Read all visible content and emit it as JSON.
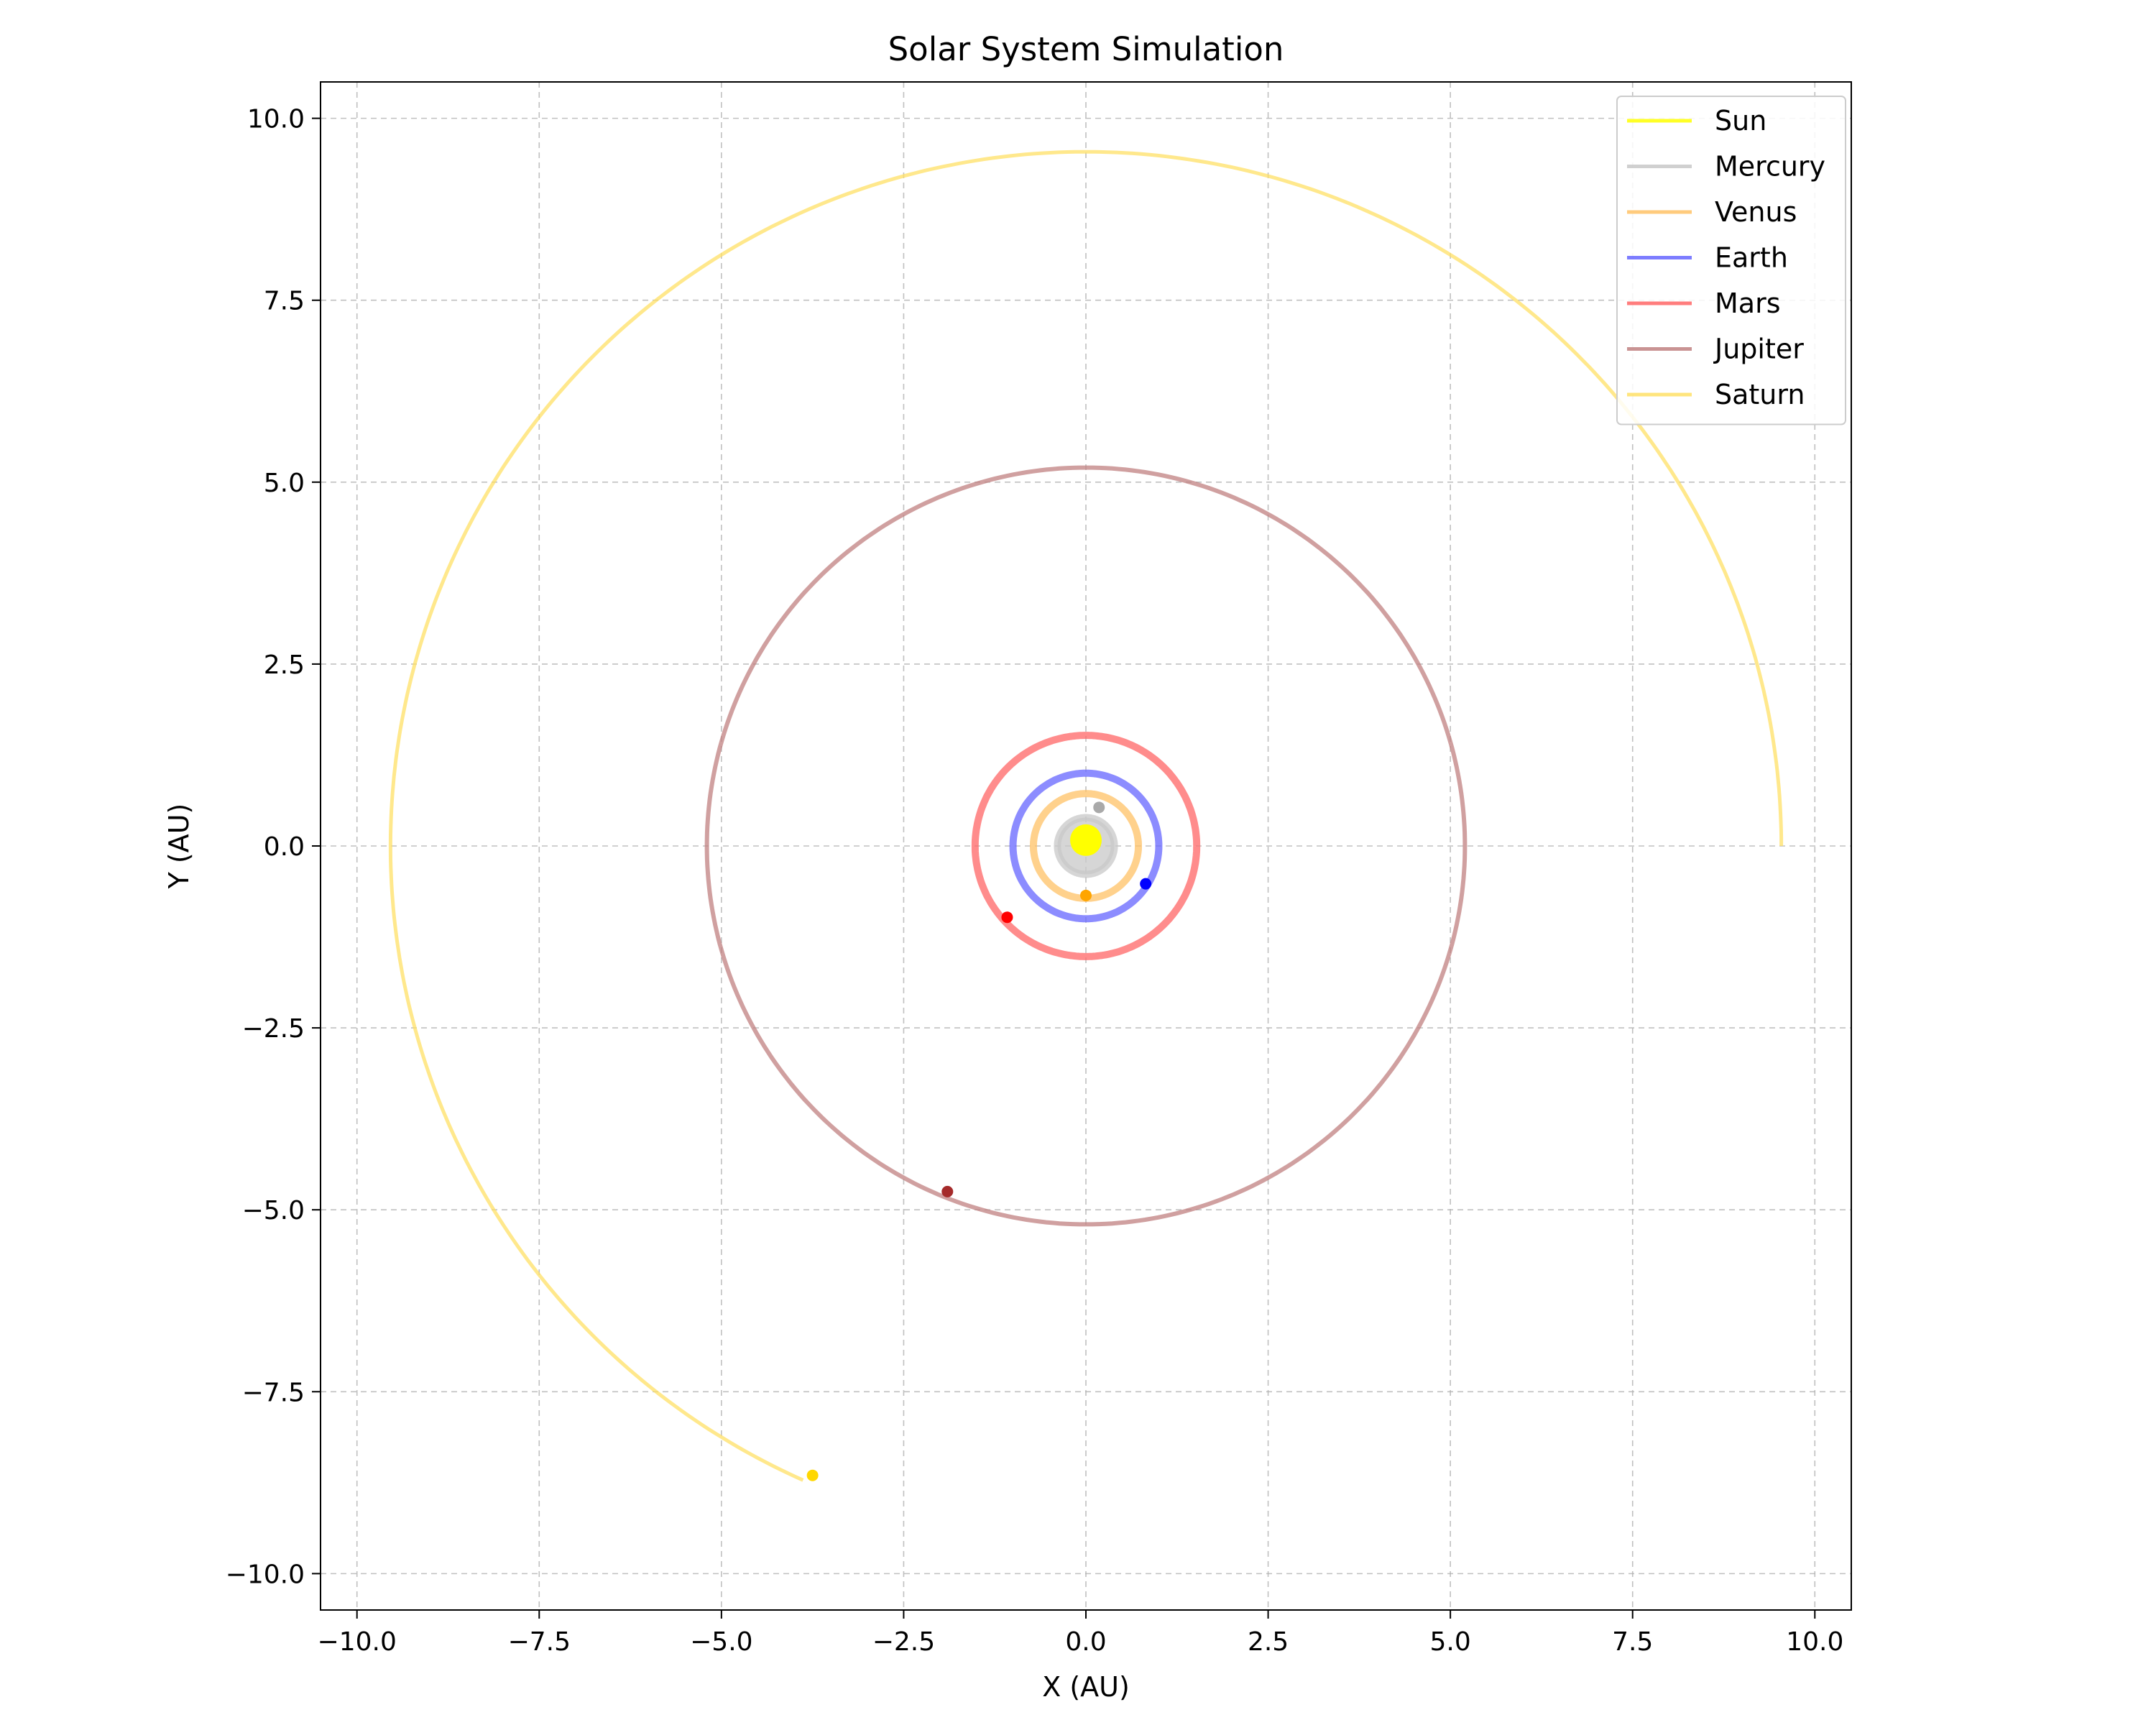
{
  "chart_data": {
    "type": "line",
    "title": "Solar System Simulation",
    "xlabel": "X (AU)",
    "ylabel": "Y (AU)",
    "xlim": [
      -10.5,
      10.5
    ],
    "ylim": [
      -10.5,
      10.5
    ],
    "xticks": [
      -10.0,
      -7.5,
      -5.0,
      -2.5,
      0.0,
      2.5,
      5.0,
      7.5,
      10.0
    ],
    "yticks": [
      -10.0,
      -7.5,
      -5.0,
      -2.5,
      0.0,
      2.5,
      5.0,
      7.5,
      10.0
    ],
    "xtick_labels": [
      "−10.0",
      "−7.5",
      "−5.0",
      "−2.5",
      "0.0",
      "2.5",
      "5.0",
      "7.5",
      "10.0"
    ],
    "ytick_labels": [
      "−10.0",
      "−7.5",
      "−5.0",
      "−2.5",
      "0.0",
      "2.5",
      "5.0",
      "7.5",
      "10.0"
    ],
    "grid": true,
    "legend_position": "top-right",
    "series": [
      {
        "name": "Sun",
        "color": "#ffff00",
        "orbit_radius": 0.0,
        "start_angle_deg": 0,
        "sweep_deg": 0,
        "current": [
          0.0,
          0.08
        ],
        "marker_color": "#ffff00"
      },
      {
        "name": "Mercury",
        "color": "#c8c8c8",
        "orbit_radius": 0.39,
        "start_angle_deg": 0,
        "sweep_deg": 360,
        "current": [
          0.18,
          0.53
        ],
        "marker_color": "#a9a9a9"
      },
      {
        "name": "Venus",
        "color": "#ffc266",
        "orbit_radius": 0.72,
        "start_angle_deg": 0,
        "sweep_deg": 360,
        "current": [
          0.0,
          -0.68
        ],
        "marker_color": "#ffa500"
      },
      {
        "name": "Earth",
        "color": "#6666ff",
        "orbit_radius": 1.0,
        "start_angle_deg": 0,
        "sweep_deg": 360,
        "current": [
          0.82,
          -0.52
        ],
        "marker_color": "#0000ff"
      },
      {
        "name": "Mars",
        "color": "#ff6666",
        "orbit_radius": 1.52,
        "start_angle_deg": 0,
        "sweep_deg": 360,
        "current": [
          -1.08,
          -0.98
        ],
        "marker_color": "#ff0000"
      },
      {
        "name": "Jupiter",
        "color": "#c08080",
        "orbit_radius": 5.2,
        "start_angle_deg": 0,
        "sweep_deg": 360,
        "current": [
          -1.9,
          -4.75
        ],
        "marker_color": "#a52a2a"
      },
      {
        "name": "Saturn",
        "color": "#ffe066",
        "orbit_radius": 9.54,
        "start_angle_deg": 0,
        "sweep_deg": 246,
        "current": [
          -3.75,
          -8.65
        ],
        "marker_color": "#ffd700"
      }
    ]
  }
}
